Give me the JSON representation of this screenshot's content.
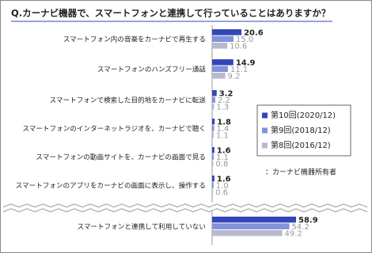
{
  "chart_data": {
    "type": "bar",
    "orientation": "horizontal",
    "title": "Q.カーナビ機器で、スマートフォンと連携して行っていることはありますか？",
    "note": "：カーナビ機器所有者",
    "categories": [
      "スマートフォン内の音楽をカーナビで再生する",
      "スマートフォンのハンズフリー通話",
      "スマートフォンで検索した目的地をカーナビに転送",
      "スマートフォンのインターネットラジオを、カーナビで聴く",
      "スマートフォンの動画サイトを、カーナビの画面で見る",
      "スマートフォンのアプリをカーナビの画面に表示し、操作する",
      "スマートフォンと連携して利用していない"
    ],
    "series": [
      {
        "name": "第10回(2020/12)",
        "color": "#3346b8",
        "values": [
          20.6,
          14.9,
          3.2,
          1.8,
          1.6,
          1.6,
          58.9
        ],
        "value_labels": [
          "20.6",
          "14.9",
          "3.2",
          "1.8",
          "1.6",
          "1.6",
          "58.9"
        ]
      },
      {
        "name": "第9回(2018/12)",
        "color": "#8492dc",
        "values": [
          15.0,
          11.1,
          2.2,
          1.4,
          1.1,
          1.0,
          54.2
        ],
        "value_labels": [
          "15.0",
          "11.1",
          "2.2",
          "1.4",
          "1.1",
          "1.0",
          "54.2"
        ]
      },
      {
        "name": "第8回(2016/12)",
        "color": "#b7b9cc",
        "values": [
          10.6,
          9.2,
          1.3,
          1.1,
          0.8,
          0.6,
          49.2
        ],
        "value_labels": [
          "10.6",
          "9.2",
          "1.3",
          "1.1",
          "0.8",
          "0.6",
          "49.2"
        ]
      }
    ],
    "xlim": [
      0,
      100
    ],
    "legend": "right"
  }
}
